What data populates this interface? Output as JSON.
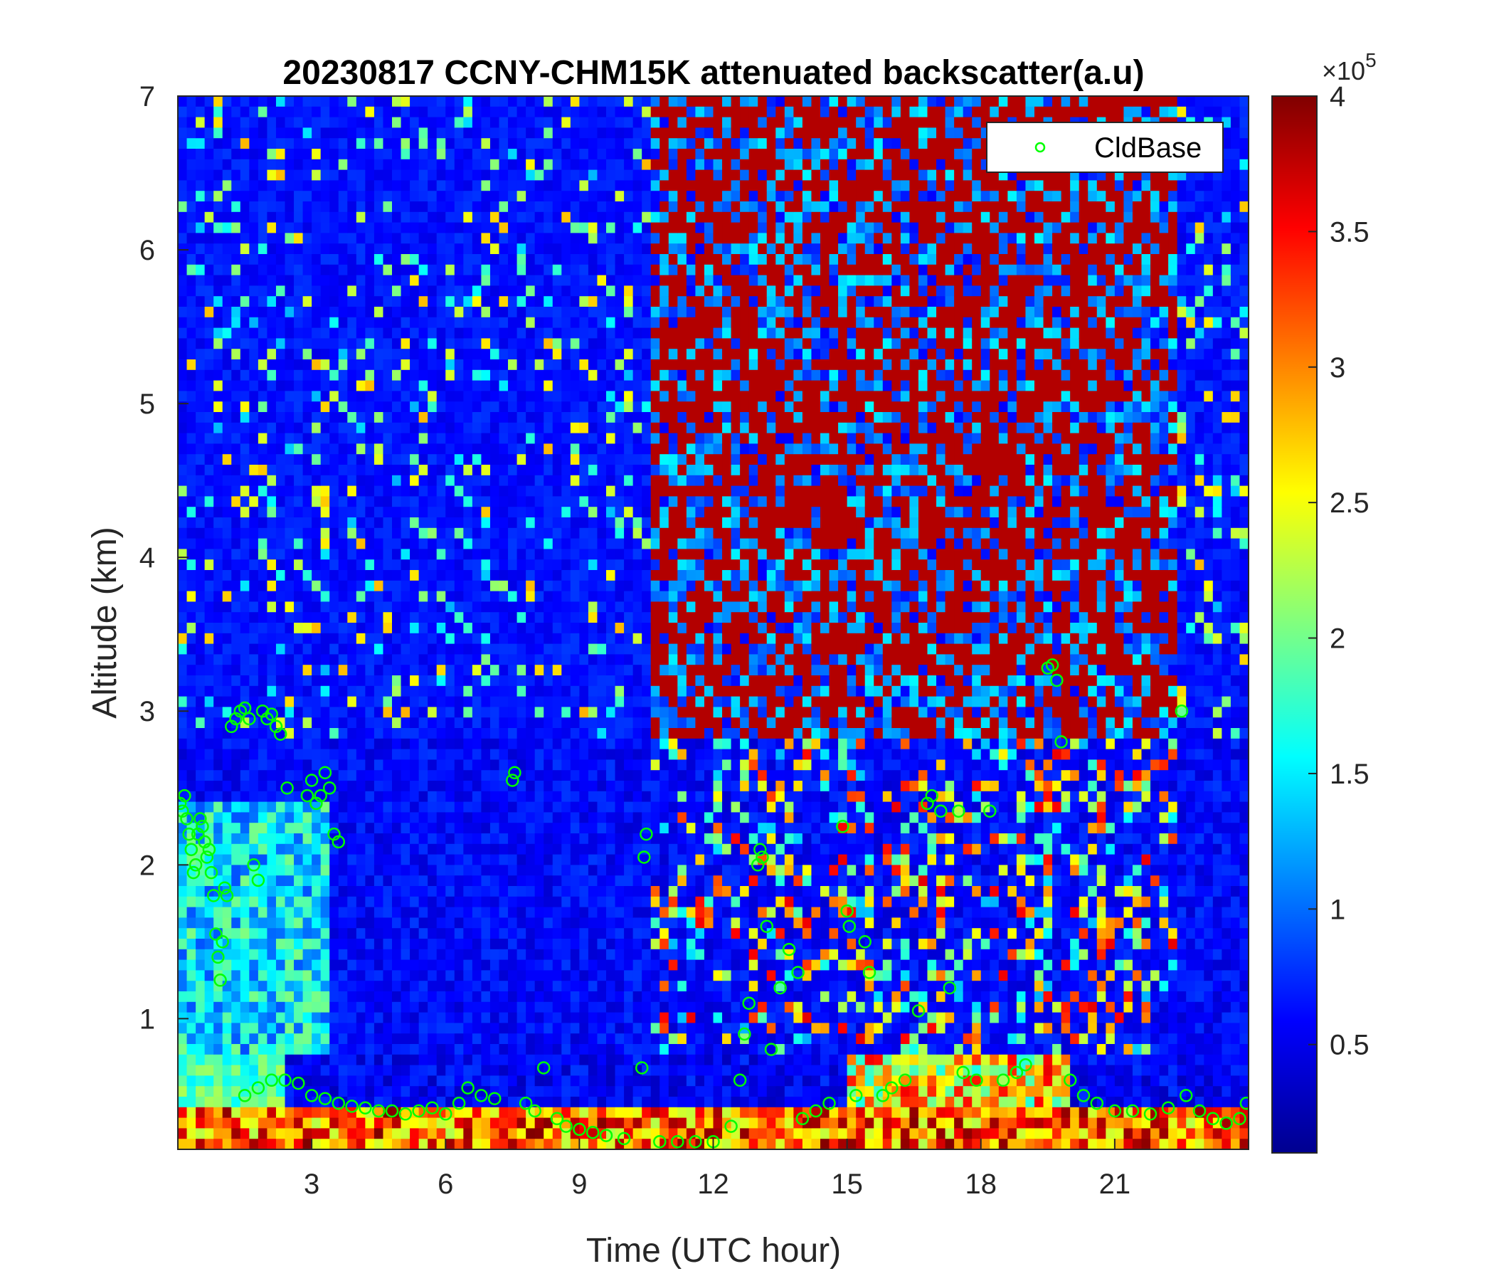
{
  "chart_data": {
    "type": "heatmap",
    "title": "20230817 CCNY-CHM15K attenuated backscatter(a.u)",
    "xlabel": "Time (UTC hour)",
    "ylabel": "Altitude (km)",
    "xlim": [
      0,
      24
    ],
    "ylim": [
      0.15,
      7
    ],
    "x_ticks": [
      3,
      6,
      9,
      12,
      15,
      18,
      21
    ],
    "x_tick_labels": [
      "3",
      "6",
      "9",
      "12",
      "15",
      "18",
      "21"
    ],
    "y_ticks": [
      1,
      2,
      3,
      4,
      5,
      6,
      7
    ],
    "y_tick_labels": [
      "1",
      "2",
      "3",
      "4",
      "5",
      "6",
      "7"
    ],
    "colormap": "jet",
    "colorbar": {
      "clim": [
        0.1,
        4
      ],
      "ticks": [
        0.5,
        1,
        1.5,
        2,
        2.5,
        3,
        3.5,
        4
      ],
      "tick_labels": [
        "0.5",
        "1",
        "1.5",
        "2",
        "2.5",
        "3",
        "3.5",
        "4"
      ],
      "exponent_prefix": "×10",
      "exponent": "5"
    },
    "legend": {
      "location": "top-right",
      "entries": [
        "CldBase"
      ]
    },
    "series": [
      {
        "name": "CldBase",
        "marker": "circle",
        "color": "#00ff00",
        "points": [
          [
            0.05,
            2.4
          ],
          [
            0.1,
            2.35
          ],
          [
            0.15,
            2.45
          ],
          [
            0.2,
            2.3
          ],
          [
            0.25,
            2.2
          ],
          [
            0.3,
            2.1
          ],
          [
            0.35,
            1.95
          ],
          [
            0.4,
            2.0
          ],
          [
            0.45,
            2.2
          ],
          [
            0.5,
            2.3
          ],
          [
            0.55,
            2.25
          ],
          [
            0.6,
            2.15
          ],
          [
            0.65,
            2.05
          ],
          [
            0.7,
            2.1
          ],
          [
            0.75,
            1.95
          ],
          [
            0.8,
            1.8
          ],
          [
            0.85,
            1.55
          ],
          [
            0.9,
            1.4
          ],
          [
            0.95,
            1.25
          ],
          [
            1.0,
            1.5
          ],
          [
            1.05,
            1.85
          ],
          [
            1.1,
            1.8
          ],
          [
            1.2,
            2.9
          ],
          [
            1.3,
            2.95
          ],
          [
            1.4,
            3.0
          ],
          [
            1.5,
            3.02
          ],
          [
            1.6,
            2.95
          ],
          [
            1.7,
            2.0
          ],
          [
            1.8,
            1.9
          ],
          [
            1.9,
            3.0
          ],
          [
            2.0,
            2.95
          ],
          [
            2.1,
            2.98
          ],
          [
            2.2,
            2.9
          ],
          [
            2.3,
            2.85
          ],
          [
            2.45,
            2.5
          ],
          [
            2.9,
            2.45
          ],
          [
            3.0,
            2.55
          ],
          [
            3.1,
            2.4
          ],
          [
            3.2,
            2.45
          ],
          [
            3.3,
            2.6
          ],
          [
            3.4,
            2.5
          ],
          [
            3.5,
            2.2
          ],
          [
            3.6,
            2.15
          ],
          [
            1.5,
            0.5
          ],
          [
            1.8,
            0.55
          ],
          [
            2.1,
            0.6
          ],
          [
            2.4,
            0.6
          ],
          [
            2.7,
            0.58
          ],
          [
            3.0,
            0.5
          ],
          [
            3.3,
            0.48
          ],
          [
            3.6,
            0.45
          ],
          [
            3.9,
            0.43
          ],
          [
            4.2,
            0.42
          ],
          [
            4.5,
            0.4
          ],
          [
            4.8,
            0.4
          ],
          [
            5.1,
            0.38
          ],
          [
            5.4,
            0.4
          ],
          [
            5.7,
            0.42
          ],
          [
            6.0,
            0.38
          ],
          [
            6.3,
            0.45
          ],
          [
            6.5,
            0.55
          ],
          [
            6.8,
            0.5
          ],
          [
            7.1,
            0.48
          ],
          [
            7.5,
            2.55
          ],
          [
            7.55,
            2.6
          ],
          [
            7.8,
            0.45
          ],
          [
            8.0,
            0.4
          ],
          [
            8.2,
            0.68
          ],
          [
            8.5,
            0.35
          ],
          [
            8.7,
            0.3
          ],
          [
            9.0,
            0.28
          ],
          [
            9.3,
            0.26
          ],
          [
            9.6,
            0.24
          ],
          [
            10.0,
            0.22
          ],
          [
            10.4,
            0.68
          ],
          [
            10.45,
            2.05
          ],
          [
            10.5,
            2.2
          ],
          [
            10.8,
            0.2
          ],
          [
            11.2,
            0.2
          ],
          [
            11.6,
            0.2
          ],
          [
            12.0,
            0.2
          ],
          [
            12.4,
            0.3
          ],
          [
            12.6,
            0.6
          ],
          [
            12.7,
            0.9
          ],
          [
            12.8,
            1.1
          ],
          [
            13.0,
            2.0
          ],
          [
            13.05,
            2.1
          ],
          [
            13.1,
            2.05
          ],
          [
            13.2,
            1.6
          ],
          [
            13.3,
            0.8
          ],
          [
            13.5,
            1.2
          ],
          [
            13.7,
            1.45
          ],
          [
            13.9,
            1.3
          ],
          [
            14.0,
            0.35
          ],
          [
            14.3,
            0.4
          ],
          [
            14.6,
            0.45
          ],
          [
            14.9,
            2.25
          ],
          [
            15.0,
            1.7
          ],
          [
            15.05,
            1.6
          ],
          [
            15.2,
            0.5
          ],
          [
            15.4,
            1.5
          ],
          [
            15.5,
            1.3
          ],
          [
            15.8,
            0.5
          ],
          [
            16.0,
            0.55
          ],
          [
            16.3,
            0.6
          ],
          [
            16.6,
            1.05
          ],
          [
            16.8,
            2.4
          ],
          [
            16.9,
            2.45
          ],
          [
            17.1,
            2.35
          ],
          [
            17.3,
            1.2
          ],
          [
            17.5,
            2.35
          ],
          [
            17.6,
            0.65
          ],
          [
            17.9,
            0.6
          ],
          [
            18.2,
            2.35
          ],
          [
            18.5,
            0.6
          ],
          [
            18.8,
            0.65
          ],
          [
            19.0,
            0.7
          ],
          [
            19.5,
            3.28
          ],
          [
            19.6,
            3.3
          ],
          [
            19.7,
            3.2
          ],
          [
            19.8,
            2.8
          ],
          [
            20.0,
            0.6
          ],
          [
            20.3,
            0.5
          ],
          [
            20.6,
            0.45
          ],
          [
            21.0,
            0.4
          ],
          [
            21.4,
            0.4
          ],
          [
            21.8,
            0.38
          ],
          [
            22.2,
            0.42
          ],
          [
            22.5,
            3.0
          ],
          [
            22.6,
            0.5
          ],
          [
            22.9,
            0.4
          ],
          [
            23.2,
            0.35
          ],
          [
            23.5,
            0.32
          ],
          [
            23.8,
            0.35
          ],
          [
            23.95,
            0.45
          ]
        ]
      }
    ]
  }
}
